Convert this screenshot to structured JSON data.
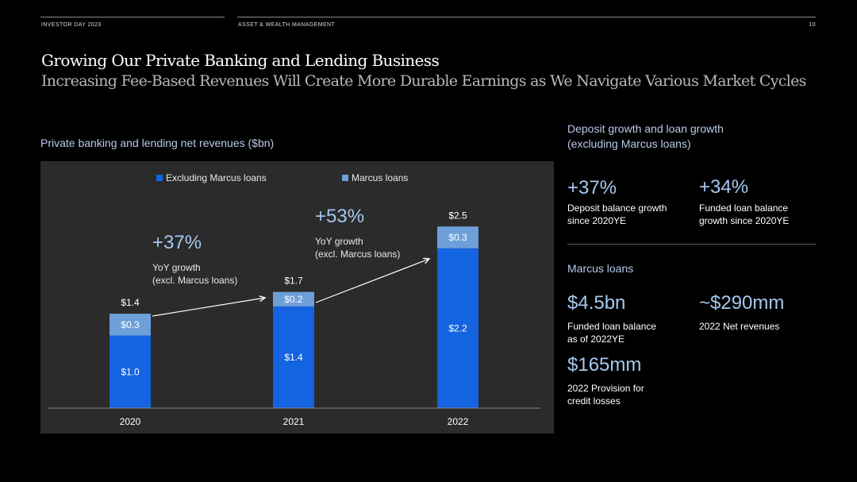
{
  "header": {
    "left": "INVESTOR DAY 2023",
    "section": "ASSET & WEALTH MANAGEMENT",
    "page_number": "10"
  },
  "title": "Growing Our Private Banking and Lending Business",
  "subtitle": "Increasing Fee-Based Revenues Will Create More Durable Earnings as We Navigate Various Market Cycles",
  "colors": {
    "excluding_marcus": "#1463e0",
    "marcus": "#6e9fd8",
    "background": "#000000",
    "chart_panel": "#2b2b2b"
  },
  "chart_data": {
    "type": "bar",
    "title": "Private banking and lending net revenues ($bn)",
    "stacked": true,
    "categories": [
      "2020",
      "2021",
      "2022"
    ],
    "series": [
      {
        "name": "Excluding Marcus loans",
        "values": [
          1.0,
          1.4,
          2.2
        ],
        "labels": [
          "$1.0",
          "$1.4",
          "$2.2"
        ]
      },
      {
        "name": "Marcus loans",
        "values": [
          0.3,
          0.2,
          0.3
        ],
        "labels": [
          "$0.3",
          "$0.2",
          "$0.3"
        ]
      }
    ],
    "totals": [
      1.4,
      1.7,
      2.5
    ],
    "total_labels": [
      "$1.4",
      "$1.7",
      "$2.5"
    ],
    "legend_position": "top",
    "grid": false,
    "annotations": [
      {
        "value": "+37%",
        "text": "YoY growth\n(excl. Marcus loans)"
      },
      {
        "value": "+53%",
        "text": "YoY growth\n(excl. Marcus loans)"
      }
    ]
  },
  "right_panel": {
    "deposit_heading": "Deposit growth and loan growth\n(excluding Marcus loans)",
    "deposit_stats": [
      {
        "value": "+37%",
        "label": "Deposit balance growth\nsince 2020YE"
      },
      {
        "value": "+34%",
        "label": "Funded loan balance\ngrowth since 2020YE"
      }
    ],
    "marcus_heading": "Marcus loans",
    "marcus_stats": [
      {
        "value": "$4.5bn",
        "label": "Funded loan balance\nas of 2022YE"
      },
      {
        "value": "~$290mm",
        "label": "2022 Net revenues"
      },
      {
        "value": "$165mm",
        "label": "2022 Provision for\ncredit losses"
      }
    ]
  }
}
